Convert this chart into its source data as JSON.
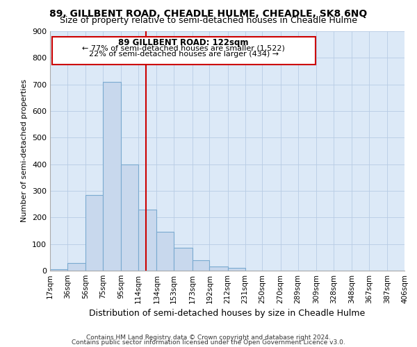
{
  "title": "89, GILLBENT ROAD, CHEADLE HULME, CHEADLE, SK8 6NQ",
  "subtitle": "Size of property relative to semi-detached houses in Cheadle Hulme",
  "xlabel": "Distribution of semi-detached houses by size in Cheadle Hulme",
  "ylabel": "Number of semi-detached properties",
  "bin_labels": [
    "17sqm",
    "36sqm",
    "56sqm",
    "75sqm",
    "95sqm",
    "114sqm",
    "134sqm",
    "153sqm",
    "173sqm",
    "192sqm",
    "212sqm",
    "231sqm",
    "250sqm",
    "270sqm",
    "289sqm",
    "309sqm",
    "328sqm",
    "348sqm",
    "367sqm",
    "387sqm",
    "406sqm"
  ],
  "bin_edges": [
    17,
    36,
    56,
    75,
    95,
    114,
    134,
    153,
    173,
    192,
    212,
    231,
    250,
    270,
    289,
    309,
    328,
    348,
    367,
    387,
    406
  ],
  "bar_heights": [
    5,
    30,
    285,
    710,
    400,
    230,
    145,
    85,
    40,
    15,
    10,
    0,
    0,
    0,
    0,
    0,
    0,
    0,
    0,
    0
  ],
  "bar_color": "#c8d8ed",
  "bar_edge_color": "#7aaad0",
  "grid_color": "#b8cce4",
  "background_color": "#dce9f7",
  "annotation_box_color": "#ffffff",
  "annotation_border_color": "#cc0000",
  "vline_x": 122,
  "vline_color": "#cc0000",
  "annotation_text_line1": "89 GILLBENT ROAD: 122sqm",
  "annotation_text_line2": "← 77% of semi-detached houses are smaller (1,522)",
  "annotation_text_line3": "22% of semi-detached houses are larger (434) →",
  "footer_line1": "Contains HM Land Registry data © Crown copyright and database right 2024.",
  "footer_line2": "Contains public sector information licensed under the Open Government Licence v3.0.",
  "ylim": [
    0,
    900
  ],
  "yticks": [
    0,
    100,
    200,
    300,
    400,
    500,
    600,
    700,
    800,
    900
  ]
}
